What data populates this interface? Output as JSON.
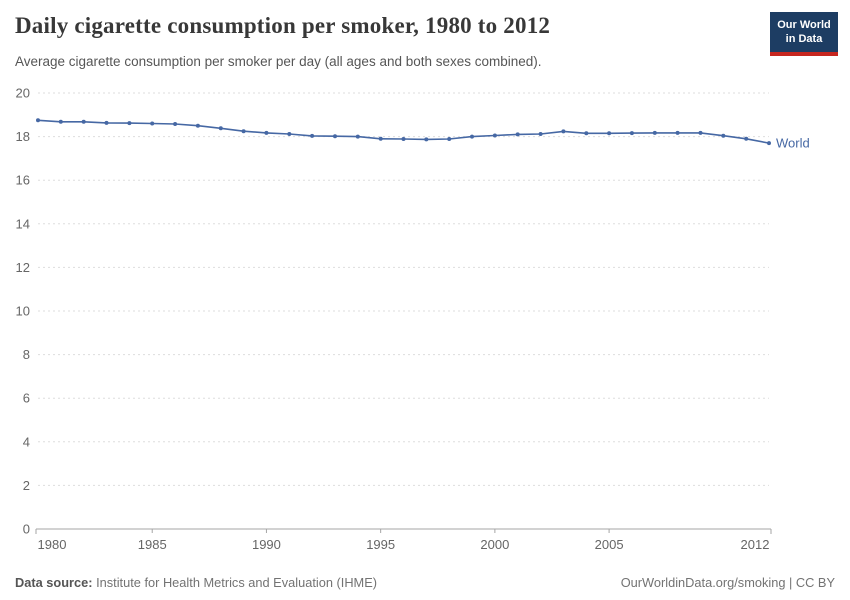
{
  "header": {
    "title": "Daily cigarette consumption per smoker, 1980 to 2012",
    "subtitle": "Average cigarette consumption per smoker per day (all ages and both sexes combined).",
    "logo": {
      "line1": "Our World",
      "line2": "in Data"
    }
  },
  "chart_data": {
    "type": "line",
    "title": "Daily cigarette consumption per smoker, 1980 to 2012",
    "subtitle": "Average cigarette consumption per smoker per day (all ages and both sexes combined).",
    "xlabel": "",
    "ylabel": "",
    "xlim": [
      1980,
      2012
    ],
    "ylim": [
      0,
      20
    ],
    "x_ticks": [
      1980,
      1985,
      1990,
      1995,
      2000,
      2005,
      2012
    ],
    "y_ticks": [
      0,
      2,
      4,
      6,
      8,
      10,
      12,
      14,
      16,
      18,
      20
    ],
    "grid": "horizontal-dashed",
    "legend_position": "end-of-line-label",
    "series": [
      {
        "name": "World",
        "color": "#4668A4",
        "x": [
          1980,
          1981,
          1982,
          1983,
          1984,
          1985,
          1986,
          1987,
          1988,
          1989,
          1990,
          1991,
          1992,
          1993,
          1994,
          1995,
          1996,
          1997,
          1998,
          1999,
          2000,
          2001,
          2002,
          2003,
          2004,
          2005,
          2006,
          2007,
          2008,
          2009,
          2010,
          2011,
          2012
        ],
        "values": [
          18.75,
          18.68,
          18.68,
          18.63,
          18.62,
          18.6,
          18.58,
          18.5,
          18.38,
          18.25,
          18.17,
          18.12,
          18.03,
          18.02,
          18.0,
          17.9,
          17.89,
          17.87,
          17.89,
          18.0,
          18.05,
          18.1,
          18.12,
          18.24,
          18.15,
          18.15,
          18.16,
          18.17,
          18.17,
          18.17,
          18.04,
          17.9,
          17.7
        ]
      }
    ]
  },
  "footer": {
    "datasource_label": "Data source:",
    "datasource_value": " Institute for Health Metrics and Evaluation (IHME)",
    "credit": "OurWorldinData.org/smoking | CC BY"
  },
  "colors": {
    "series": "#4668A4",
    "logo_bg": "#1D3D63",
    "logo_red": "#C6261F",
    "grid": "#DDDDDD",
    "axis": "#A5A5A5",
    "tick_text": "#666666",
    "title_text": "#383838",
    "subtitle_text": "#565656",
    "footer_text": "#737373"
  }
}
